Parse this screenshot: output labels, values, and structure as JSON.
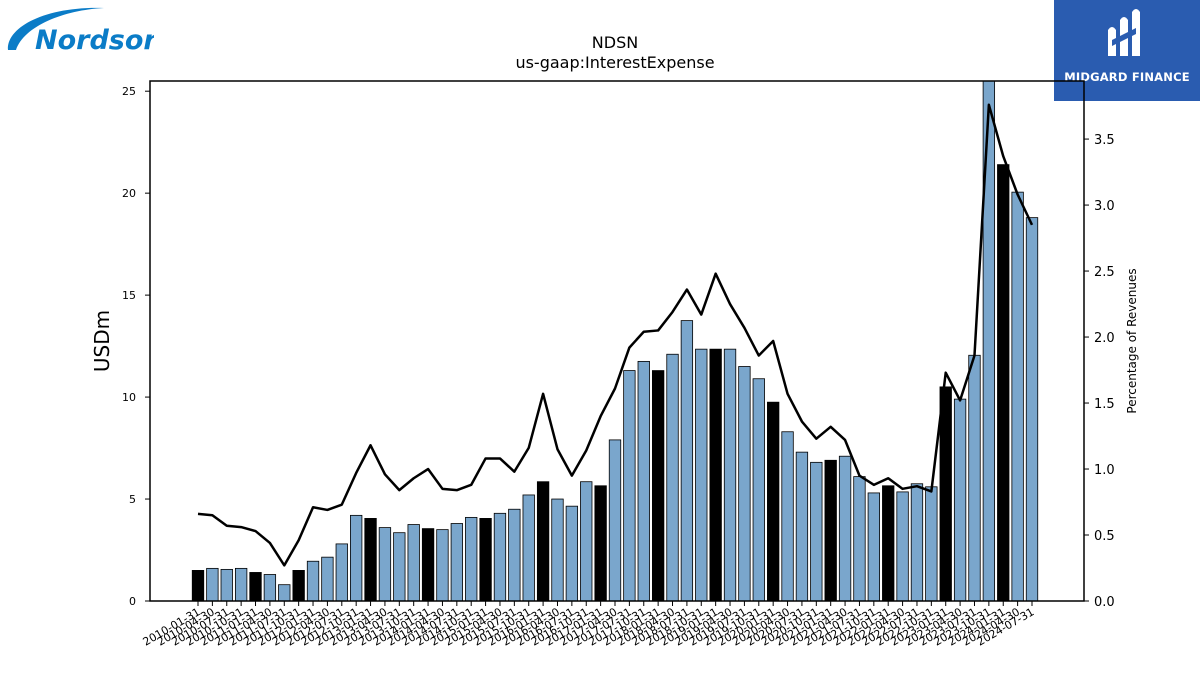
{
  "logos": {
    "company": "Nordson",
    "watermark": "MIDGARD FINANCE"
  },
  "colors": {
    "bar_default": "#7aa6cc",
    "bar_highlight": "#000000",
    "line": "#000000",
    "logo_blue": "#0b7cc7",
    "watermark_bg": "#2a5cb0"
  },
  "chart_data": {
    "type": "bar",
    "title": "NDSN",
    "subtitle": "us-gaap:InterestExpense",
    "ylabel": "USDm",
    "ylabel_right": "Percentage of Revenues",
    "ylim": [
      0,
      25.5
    ],
    "ylim_right": [
      0,
      3.94
    ],
    "yticks": [
      "0",
      "5",
      "10",
      "15",
      "20",
      "25"
    ],
    "yticks_right": [
      "0.0",
      "0.5",
      "1.0",
      "1.5",
      "2.0",
      "2.5",
      "3.0",
      "3.5"
    ],
    "grid": false,
    "categories": [
      "2010-01-31",
      "2010-04-30",
      "2010-07-31",
      "2010-10-31",
      "2011-01-31",
      "2011-04-30",
      "2011-07-31",
      "2011-10-31",
      "2012-01-31",
      "2012-04-30",
      "2012-07-31",
      "2012-10-31",
      "2013-01-31",
      "2013-04-30",
      "2013-07-31",
      "2013-10-31",
      "2014-01-31",
      "2014-04-30",
      "2014-07-31",
      "2014-10-31",
      "2015-01-31",
      "2015-04-30",
      "2015-07-31",
      "2015-10-31",
      "2016-01-31",
      "2016-04-30",
      "2016-07-31",
      "2016-10-31",
      "2017-01-31",
      "2017-04-30",
      "2017-07-31",
      "2017-10-31",
      "2018-01-31",
      "2018-04-30",
      "2018-07-31",
      "2018-10-31",
      "2019-01-31",
      "2019-04-30",
      "2019-07-31",
      "2019-10-31",
      "2020-01-31",
      "2020-04-30",
      "2020-07-31",
      "2020-10-31",
      "2021-01-31",
      "2021-04-30",
      "2021-07-31",
      "2021-10-31",
      "2022-01-31",
      "2022-04-30",
      "2022-07-31",
      "2022-10-31",
      "2023-01-31",
      "2023-04-30",
      "2023-07-31",
      "2023-10-31",
      "2024-01-31",
      "2024-04-30",
      "2024-07-31"
    ],
    "series": [
      {
        "type": "bar",
        "axis": "left",
        "values": [
          1.5,
          1.6,
          1.55,
          1.6,
          1.4,
          1.3,
          0.8,
          1.5,
          1.95,
          2.15,
          2.8,
          4.2,
          4.05,
          3.6,
          3.35,
          3.75,
          3.55,
          3.5,
          3.8,
          4.1,
          4.05,
          4.3,
          4.5,
          5.2,
          5.85,
          5.0,
          4.65,
          5.85,
          5.65,
          7.9,
          11.3,
          11.75,
          11.3,
          12.1,
          13.75,
          12.35,
          12.35,
          12.35,
          11.5,
          10.9,
          9.75,
          8.3,
          7.3,
          6.8,
          6.9,
          7.1,
          6.1,
          5.3,
          5.65,
          5.35,
          5.75,
          5.6,
          10.5,
          9.9,
          12.05,
          25.5,
          21.4,
          20.05,
          18.8
        ],
        "highlight": [
          true,
          false,
          false,
          false,
          true,
          false,
          false,
          true,
          false,
          false,
          false,
          false,
          true,
          false,
          false,
          false,
          true,
          false,
          false,
          false,
          true,
          false,
          false,
          false,
          true,
          false,
          false,
          false,
          true,
          false,
          false,
          false,
          true,
          false,
          false,
          false,
          true,
          false,
          false,
          false,
          true,
          false,
          false,
          false,
          true,
          false,
          false,
          false,
          true,
          false,
          false,
          false,
          true,
          false,
          false,
          false,
          true,
          false,
          false
        ]
      },
      {
        "type": "line",
        "axis": "right",
        "values": [
          0.66,
          0.65,
          0.57,
          0.56,
          0.53,
          0.44,
          0.27,
          0.46,
          0.71,
          0.69,
          0.73,
          0.97,
          1.18,
          0.96,
          0.84,
          0.93,
          1.0,
          0.85,
          0.84,
          0.88,
          1.08,
          1.08,
          0.98,
          1.16,
          1.57,
          1.15,
          0.95,
          1.14,
          1.4,
          1.61,
          1.92,
          2.04,
          2.05,
          2.19,
          2.36,
          2.17,
          2.48,
          2.25,
          2.07,
          1.86,
          1.97,
          1.57,
          1.36,
          1.23,
          1.32,
          1.22,
          0.95,
          0.88,
          0.93,
          0.85,
          0.87,
          0.83,
          1.73,
          1.52,
          1.86,
          3.76,
          3.37,
          3.08,
          2.85
        ]
      }
    ]
  }
}
